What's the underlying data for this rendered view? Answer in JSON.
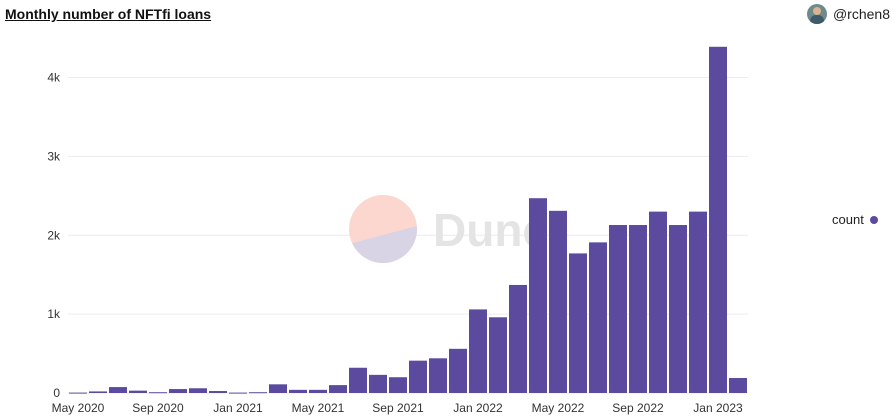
{
  "header": {
    "title": "Monthly number of NFTfi loans",
    "username": "@rchen8"
  },
  "colors": {
    "bar": "#5b4a9e",
    "grid": "#ececec",
    "axis_text": "#333333"
  },
  "watermark": {
    "text": "Dune",
    "icon": "dune-logo-icon"
  },
  "chart_data": {
    "type": "bar",
    "categories": [
      "May 2020",
      "Jun 2020",
      "Jul 2020",
      "Aug 2020",
      "Sep 2020",
      "Oct 2020",
      "Nov 2020",
      "Dec 2020",
      "Jan 2021",
      "Feb 2021",
      "Mar 2021",
      "Apr 2021",
      "May 2021",
      "Jun 2021",
      "Jul 2021",
      "Aug 2021",
      "Sep 2021",
      "Oct 2021",
      "Nov 2021",
      "Dec 2021",
      "Jan 2022",
      "Feb 2022",
      "Mar 2022",
      "Apr 2022",
      "May 2022",
      "Jun 2022",
      "Jul 2022",
      "Aug 2022",
      "Sep 2022",
      "Oct 2022",
      "Nov 2022",
      "Dec 2022",
      "Jan 2023",
      "Feb 2023"
    ],
    "series": [
      {
        "name": "count",
        "values": [
          5,
          20,
          75,
          30,
          10,
          50,
          60,
          25,
          5,
          10,
          110,
          40,
          40,
          100,
          320,
          230,
          200,
          410,
          440,
          560,
          1060,
          960,
          1370,
          2470,
          2310,
          1770,
          1910,
          2130,
          2130,
          2300,
          2130,
          2300,
          4390,
          190
        ]
      }
    ],
    "x_tick_labels": [
      "May 2020",
      "Sep 2020",
      "Jan 2021",
      "May 2021",
      "Sep 2021",
      "Jan 2022",
      "May 2022",
      "Sep 2022",
      "Jan 2023"
    ],
    "y_ticks": [
      0,
      1000,
      2000,
      3000,
      4000
    ],
    "y_tick_labels": [
      "0",
      "1k",
      "2k",
      "3k",
      "4k"
    ],
    "ylim": [
      0,
      4400
    ],
    "grid": true,
    "legend": {
      "position": "right",
      "entries": [
        "count"
      ]
    }
  }
}
